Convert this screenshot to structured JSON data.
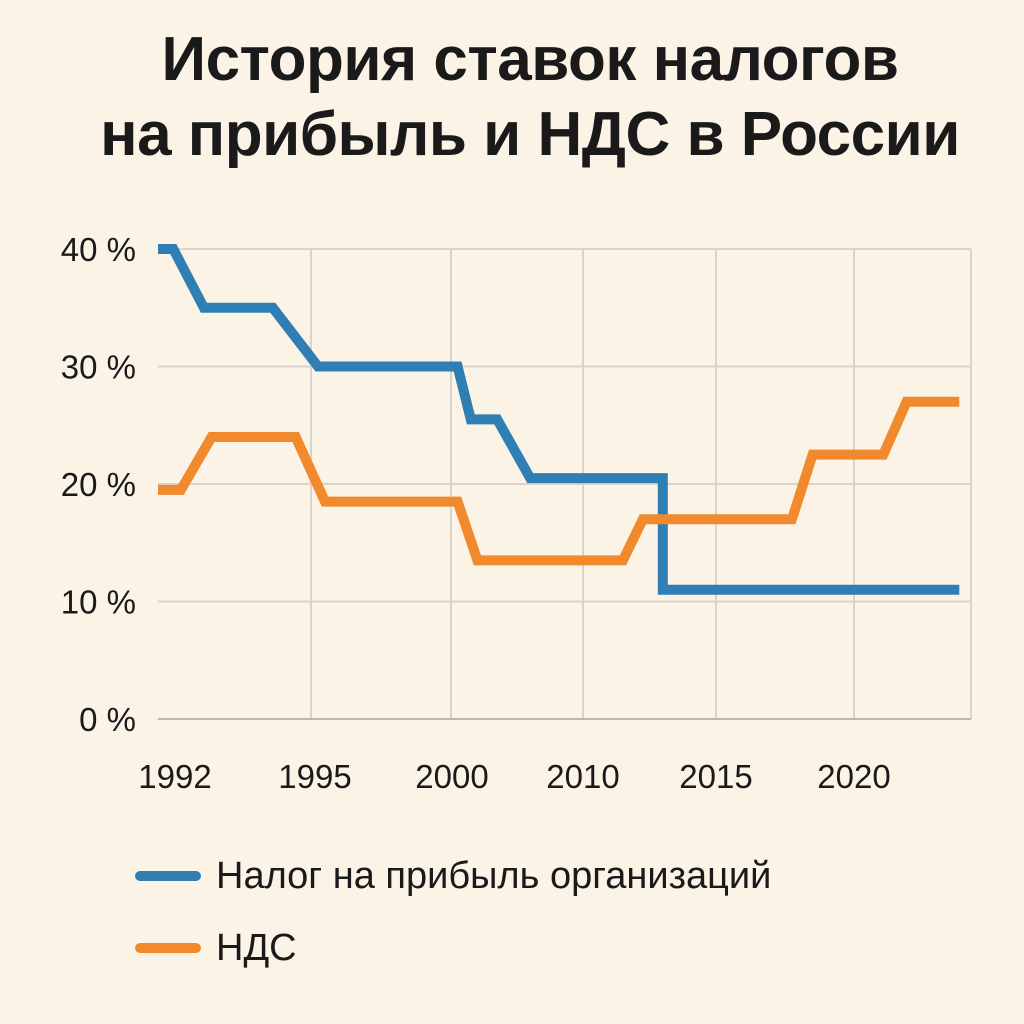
{
  "title_lines": [
    "История ставок налогов",
    "на прибыль и НДС в России"
  ],
  "chart_data": {
    "type": "line",
    "title": "История ставок налогов на прибыль и НДС в России",
    "xlabel": "",
    "ylabel": "",
    "x_tick_labels": [
      "1992",
      "1995",
      "2000",
      "2010",
      "2015",
      "2020"
    ],
    "y_tick_labels": [
      "0 %",
      "10 %",
      "20 %",
      "30 %",
      "40 %"
    ],
    "y_ticks": [
      0,
      10,
      20,
      30,
      40
    ],
    "ylim": [
      0,
      40
    ],
    "grid": true,
    "legend_position": "bottom",
    "series": [
      {
        "name": "Налог на прибыль организаций",
        "color": "#2f7fb5",
        "points": [
          [
            0,
            40
          ],
          [
            0.1,
            40
          ],
          [
            0.3,
            35
          ],
          [
            0.75,
            35
          ],
          [
            1.05,
            30
          ],
          [
            2.05,
            30
          ],
          [
            2.15,
            25.5
          ],
          [
            2.35,
            25.5
          ],
          [
            2.6,
            20.5
          ],
          [
            3.6,
            20.5
          ],
          [
            3.6,
            11
          ],
          [
            5.9,
            11
          ]
        ]
      },
      {
        "name": "НДС",
        "color": "#f08a2c",
        "points": [
          [
            0,
            19.5
          ],
          [
            0.15,
            19.5
          ],
          [
            0.35,
            24
          ],
          [
            0.9,
            24
          ],
          [
            1.1,
            18.5
          ],
          [
            2.05,
            18.5
          ],
          [
            2.2,
            13.5
          ],
          [
            3.3,
            13.5
          ],
          [
            3.45,
            17
          ],
          [
            4.55,
            17
          ],
          [
            4.7,
            22.5
          ],
          [
            5.25,
            22.5
          ],
          [
            5.45,
            27
          ],
          [
            5.9,
            27
          ]
        ]
      }
    ]
  }
}
